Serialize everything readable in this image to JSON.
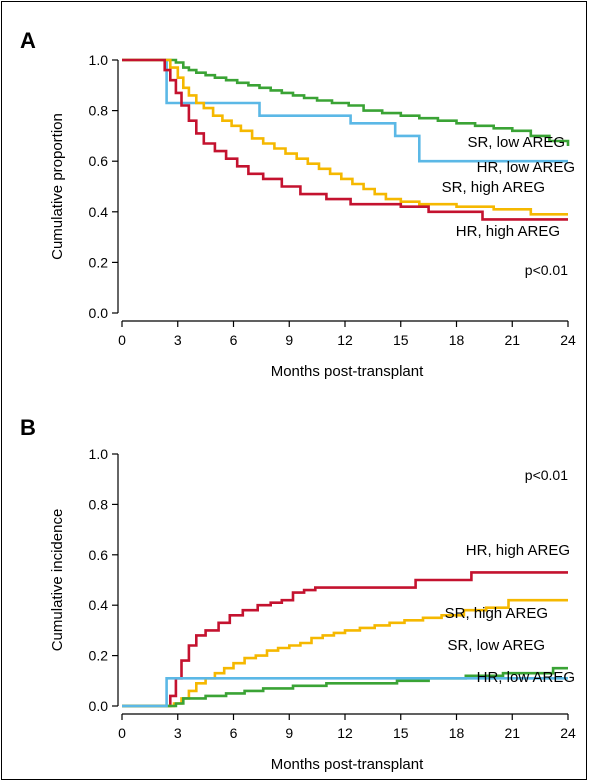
{
  "chart_data": [
    {
      "type": "line",
      "step": true,
      "panel": "A",
      "xlabel": "Months post-transplant",
      "ylabel": "Cumulative proportion",
      "xlim": [
        0,
        24
      ],
      "ylim": [
        0,
        1
      ],
      "xticks": [
        "0",
        "3",
        "6",
        "9",
        "12",
        "15",
        "18",
        "21",
        "24"
      ],
      "yticks": [
        "0.0",
        "0.2",
        "0.4",
        "0.6",
        "0.8",
        "1.0"
      ],
      "annotation": "p<0.01",
      "series": [
        {
          "name": "SR, low AREG",
          "color": "#3aa335",
          "x": [
            0,
            2.9,
            3.3,
            3.6,
            4.0,
            4.5,
            5.0,
            5.6,
            6.2,
            6.8,
            7.4,
            8.0,
            8.6,
            9.2,
            9.8,
            10.5,
            11.3,
            12.2,
            13.0,
            14.0,
            15.0,
            16.0,
            17.0,
            18.0,
            19.0,
            20.0,
            21.0,
            22.0,
            23.0,
            24.0
          ],
          "y": [
            1.0,
            0.99,
            0.97,
            0.96,
            0.95,
            0.94,
            0.93,
            0.92,
            0.91,
            0.9,
            0.89,
            0.88,
            0.87,
            0.86,
            0.85,
            0.84,
            0.83,
            0.82,
            0.8,
            0.79,
            0.78,
            0.77,
            0.76,
            0.75,
            0.74,
            0.73,
            0.72,
            0.7,
            0.68,
            0.66
          ]
        },
        {
          "name": "HR, low AREG",
          "color": "#5bb8e6",
          "x": [
            0,
            2.4,
            3.0,
            7.4,
            12.3,
            14.7,
            16.0,
            24.0
          ],
          "y": [
            1.0,
            0.83,
            0.83,
            0.78,
            0.75,
            0.7,
            0.6,
            0.6
          ],
          "labelled": true
        },
        {
          "name": "SR, high AREG",
          "color": "#f5b800",
          "x": [
            0,
            2.6,
            3.0,
            3.3,
            3.6,
            4.0,
            4.4,
            4.9,
            5.4,
            5.9,
            6.4,
            7.0,
            7.6,
            8.2,
            8.8,
            9.4,
            10.0,
            10.6,
            11.2,
            11.8,
            12.4,
            13.0,
            13.6,
            14.2,
            15.0,
            16.0,
            18.0,
            20.0,
            22.0,
            24.0
          ],
          "y": [
            1.0,
            0.97,
            0.93,
            0.89,
            0.86,
            0.83,
            0.81,
            0.78,
            0.76,
            0.74,
            0.72,
            0.69,
            0.67,
            0.65,
            0.63,
            0.61,
            0.59,
            0.57,
            0.55,
            0.53,
            0.51,
            0.49,
            0.47,
            0.45,
            0.44,
            0.43,
            0.42,
            0.41,
            0.39,
            0.39
          ]
        },
        {
          "name": "HR, high AREG",
          "color": "#c4122f",
          "x": [
            0,
            2.3,
            2.6,
            2.9,
            3.2,
            3.6,
            4.0,
            4.4,
            5.0,
            5.6,
            6.2,
            6.8,
            7.6,
            8.6,
            9.6,
            11.0,
            12.3,
            15.0,
            16.5,
            19.4,
            24.0
          ],
          "y": [
            1.0,
            0.96,
            0.92,
            0.87,
            0.82,
            0.76,
            0.71,
            0.67,
            0.64,
            0.61,
            0.58,
            0.55,
            0.53,
            0.5,
            0.47,
            0.45,
            0.43,
            0.42,
            0.4,
            0.37,
            0.37
          ]
        }
      ]
    },
    {
      "type": "line",
      "step": true,
      "panel": "B",
      "xlabel": "Months post-transplant",
      "ylabel": "Cumulative incidence",
      "xlim": [
        0,
        24
      ],
      "ylim": [
        0,
        1
      ],
      "xticks": [
        "0",
        "3",
        "6",
        "9",
        "12",
        "15",
        "18",
        "21",
        "24"
      ],
      "yticks": [
        "0.0",
        "0.2",
        "0.4",
        "0.6",
        "0.8",
        "1.0"
      ],
      "annotation": "p<0.01",
      "series": [
        {
          "name": "HR, high AREG",
          "color": "#c4122f",
          "x": [
            0,
            2.6,
            2.9,
            3.2,
            3.6,
            4.0,
            4.5,
            5.2,
            5.8,
            6.5,
            7.3,
            8.0,
            8.6,
            9.2,
            9.8,
            10.4,
            12.0,
            15.8,
            18.8,
            24.0
          ],
          "y": [
            0.0,
            0.04,
            0.11,
            0.18,
            0.24,
            0.28,
            0.3,
            0.33,
            0.36,
            0.38,
            0.4,
            0.41,
            0.42,
            0.45,
            0.46,
            0.47,
            0.47,
            0.5,
            0.53,
            0.53
          ]
        },
        {
          "name": "SR, high AREG",
          "color": "#f5b800",
          "x": [
            0,
            2.8,
            3.2,
            3.6,
            4.0,
            4.5,
            5.0,
            5.5,
            6.0,
            6.6,
            7.2,
            7.8,
            8.4,
            9.0,
            9.6,
            10.2,
            10.8,
            11.4,
            12.0,
            12.8,
            13.6,
            14.4,
            15.2,
            16.2,
            17.2,
            18.4,
            19.6,
            20.8,
            24.0
          ],
          "y": [
            0.0,
            0.01,
            0.03,
            0.06,
            0.09,
            0.11,
            0.13,
            0.15,
            0.17,
            0.19,
            0.2,
            0.22,
            0.23,
            0.24,
            0.25,
            0.27,
            0.28,
            0.29,
            0.3,
            0.31,
            0.32,
            0.33,
            0.34,
            0.35,
            0.36,
            0.38,
            0.39,
            0.42,
            0.42
          ]
        },
        {
          "name": "SR, low AREG",
          "color": "#3aa335",
          "x": [
            0,
            2.9,
            3.3,
            4.5,
            5.6,
            6.6,
            7.6,
            9.2,
            11.0,
            13.0,
            14.8,
            16.5,
            18.5,
            20.5,
            22.0,
            23.2,
            24.0
          ],
          "y": [
            0.0,
            0.01,
            0.03,
            0.04,
            0.05,
            0.06,
            0.07,
            0.08,
            0.09,
            0.09,
            0.1,
            0.11,
            0.12,
            0.13,
            0.13,
            0.15,
            0.15
          ]
        },
        {
          "name": "HR, low AREG",
          "color": "#5bb8e6",
          "x": [
            0,
            2.4,
            3.0,
            24.0
          ],
          "y": [
            0.0,
            0.11,
            0.11,
            0.11
          ]
        }
      ]
    }
  ]
}
